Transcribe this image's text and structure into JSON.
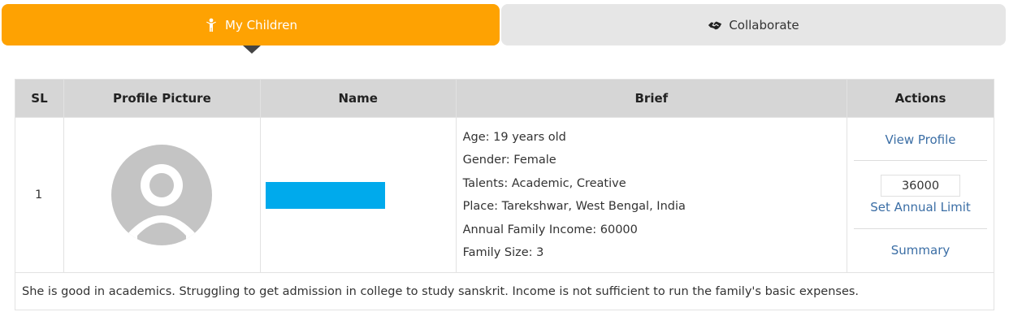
{
  "tabs": {
    "children": {
      "label": "My Children",
      "icon": "child-icon"
    },
    "collaborate": {
      "label": "Collaborate",
      "icon": "handshake-icon"
    }
  },
  "colors": {
    "active_tab": "#fea202",
    "inactive_tab": "#e6e6e6",
    "header_bg": "#d6d6d6",
    "link": "#3b6ea5",
    "name_bar": "#00aaec"
  },
  "table": {
    "headers": {
      "sl": "SL",
      "profile_picture": "Profile Picture",
      "name": "Name",
      "brief": "Brief",
      "actions": "Actions"
    },
    "rows": [
      {
        "sl": "1",
        "brief": {
          "age": "Age: 19 years old",
          "gender": "Gender: Female",
          "talents": "Talents: Academic, Creative",
          "place": "Place: Tarekshwar, West Bengal, India",
          "income": "Annual Family Income: 60000",
          "family_size": "Family Size: 3"
        },
        "actions": {
          "view_profile": "View Profile",
          "annual_limit_value": "36000",
          "set_annual_limit": "Set Annual Limit",
          "summary": "Summary"
        },
        "description": "She is good in academics. Struggling to get admission in college to study sanskrit. Income is not sufficient to run the family's basic expenses."
      }
    ]
  }
}
